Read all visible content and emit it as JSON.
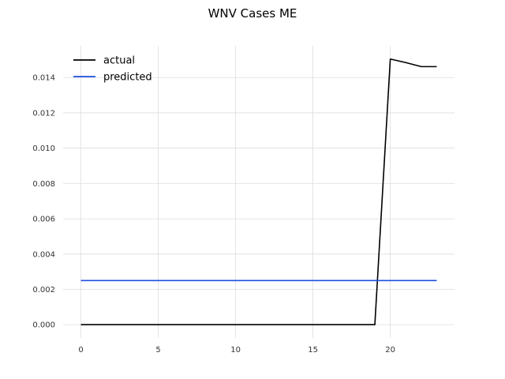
{
  "chart_data": {
    "type": "line",
    "title": "WNV Cases ME",
    "xlabel": "",
    "ylabel": "",
    "xlim": [
      -1.15,
      24.15
    ],
    "ylim": [
      -0.00075,
      0.0158
    ],
    "x_ticks": [
      0,
      5,
      10,
      15,
      20
    ],
    "y_ticks": [
      0.0,
      0.002,
      0.004,
      0.006,
      0.008,
      0.01,
      0.012,
      0.014
    ],
    "x_tick_labels": [
      "0",
      "5",
      "10",
      "15",
      "20"
    ],
    "y_tick_labels": [
      "0.000",
      "0.002",
      "0.004",
      "0.006",
      "0.008",
      "0.010",
      "0.012",
      "0.014"
    ],
    "grid": true,
    "legend_position": "top-left",
    "series": [
      {
        "name": "actual",
        "color": "#000000",
        "x": [
          0,
          1,
          2,
          3,
          4,
          5,
          6,
          7,
          8,
          9,
          10,
          11,
          12,
          13,
          14,
          15,
          16,
          17,
          18,
          19,
          20,
          21,
          22,
          23
        ],
        "values": [
          0,
          0,
          0,
          0,
          0,
          0,
          0,
          0,
          0,
          0,
          0,
          0,
          0,
          0,
          0,
          0,
          0,
          0,
          0,
          0,
          0.01505,
          0.01485,
          0.01462,
          0.01462
        ]
      },
      {
        "name": "predicted",
        "color": "#1f4fe0",
        "x": [
          0,
          23
        ],
        "values": [
          0.0025,
          0.0025
        ]
      }
    ]
  }
}
